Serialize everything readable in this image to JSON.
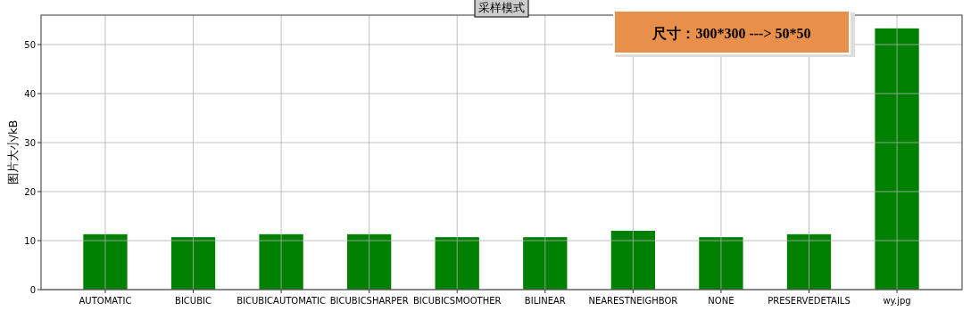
{
  "chart_data": {
    "type": "bar",
    "title": "采样模式",
    "ylabel": "图片大小/kB",
    "categories": [
      "AUTOMATIC",
      "BICUBIC",
      "BICUBICAUTOMATIC",
      "BICUBICSHARPER",
      "BICUBICSMOOTHER",
      "BILINEAR",
      "NEARESTNEIGHBOR",
      "NONE",
      "PRESERVEDETAILS",
      "wy.jpg"
    ],
    "values": [
      11.3,
      10.7,
      11.3,
      11.3,
      10.7,
      10.7,
      12.0,
      10.7,
      11.3,
      53.3
    ],
    "color": "#008000",
    "ylim": [
      0,
      56
    ],
    "yticks": [
      0,
      10,
      20,
      30,
      40,
      50
    ],
    "grid": true,
    "annotations": [
      "尺寸：300*300 ---> 50*50"
    ]
  }
}
